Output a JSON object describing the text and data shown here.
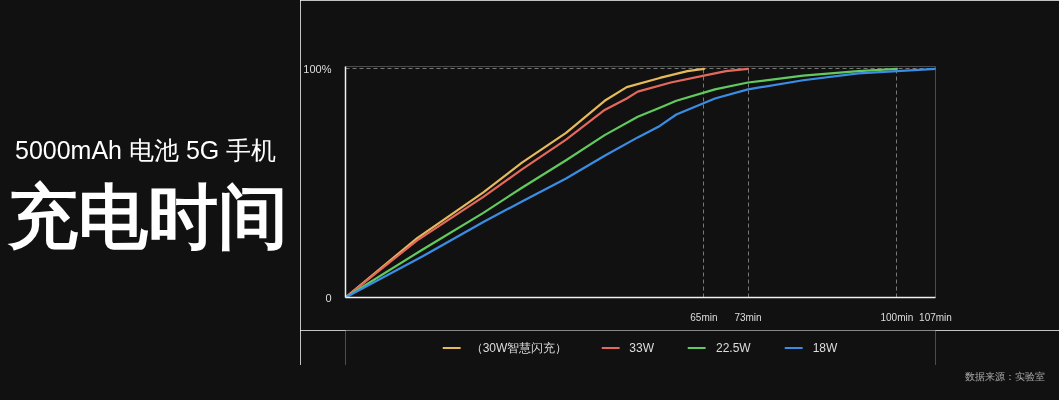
{
  "chart_data": {
    "type": "line",
    "title": "充电时间",
    "subtitle": "5000mAh 电池 5G 手机",
    "xlim": [
      0,
      107
    ],
    "ylim": [
      0,
      101
    ],
    "xticks": [
      {
        "value": 65,
        "label": "65min"
      },
      {
        "value": 73,
        "label": "73min"
      },
      {
        "value": 100,
        "label": "100min"
      },
      {
        "value": 107,
        "label": "107min"
      }
    ],
    "yticks": [
      {
        "value": 0,
        "label": "0"
      },
      {
        "value": 100,
        "label": "100%"
      }
    ],
    "grid": true,
    "legend": "bottom",
    "line_style": "solid",
    "series": [
      {
        "name": "（30W智慧闪充）",
        "color": "#e6b95c",
        "x": [
          0,
          13,
          25,
          32,
          40,
          47,
          51,
          57,
          62,
          65
        ],
        "values": [
          0,
          26,
          46,
          59,
          72,
          86,
          92,
          96,
          99,
          100
        ]
      },
      {
        "name": "33W",
        "color": "#e4695c",
        "x": [
          0,
          13,
          25,
          32,
          40,
          47,
          51,
          53,
          59,
          65,
          69,
          73
        ],
        "values": [
          0,
          25,
          44,
          56,
          69,
          82,
          87,
          90,
          94,
          97,
          99,
          100
        ]
      },
      {
        "name": "22.5W",
        "color": "#62c95e",
        "x": [
          0,
          14,
          25,
          32,
          40,
          47,
          53,
          57,
          60,
          67,
          73,
          83,
          93,
          100
        ],
        "values": [
          0,
          21,
          37,
          48,
          60,
          71,
          79,
          83,
          86,
          91,
          94,
          97,
          99,
          100
        ]
      },
      {
        "name": "18W",
        "color": "#3a8de4",
        "x": [
          0,
          14,
          25,
          32,
          40,
          47,
          53,
          57,
          60,
          67,
          73,
          83,
          93,
          100,
          107
        ],
        "values": [
          0,
          18,
          33,
          42,
          52,
          62,
          70,
          75,
          80,
          87,
          91,
          95,
          98,
          99,
          100
        ]
      }
    ],
    "annotations": [
      "数据来源：实验室"
    ]
  }
}
